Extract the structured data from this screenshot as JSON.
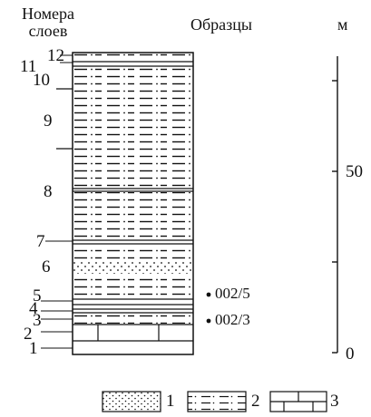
{
  "headers": {
    "layers_line1": "Номера",
    "layers_line2": "слоев",
    "samples": "Образцы",
    "meters": "м"
  },
  "layer_numbers": [
    "1",
    "2",
    "3",
    "4",
    "5",
    "6",
    "7",
    "8",
    "9",
    "10",
    "11",
    "12"
  ],
  "samples": [
    {
      "label": "002/5",
      "layer": "5"
    },
    {
      "label": "002/3",
      "layer": "3"
    }
  ],
  "scale": {
    "unit": "м",
    "ticks": [
      "0",
      "50"
    ],
    "range_m": [
      0,
      75
    ]
  },
  "legend": [
    {
      "num": "1",
      "pattern": "dotted"
    },
    {
      "num": "2",
      "pattern": "dash-dot"
    },
    {
      "num": "3",
      "pattern": "brick"
    }
  ]
}
